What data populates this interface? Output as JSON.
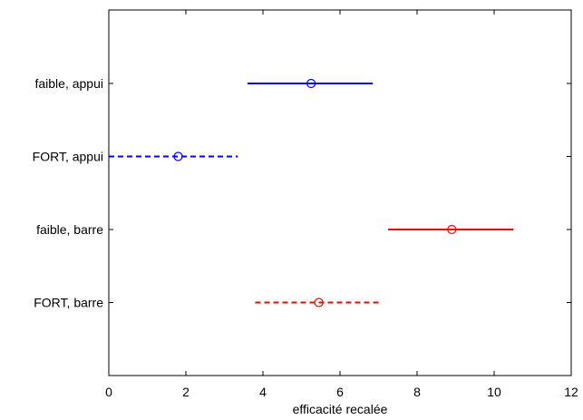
{
  "chart_data": {
    "type": "scatter",
    "subtype": "error-bar interval plot",
    "xlabel": "efficacité recalée",
    "ylabel": "",
    "xlim": [
      0,
      12
    ],
    "xticks": [
      "0",
      "2",
      "4",
      "6",
      "8",
      "10",
      "12"
    ],
    "grid": false,
    "legend": "none",
    "categories": [
      "faible, appui",
      "FORT, appui",
      "faible, barre",
      "FORT, barre"
    ],
    "series": [
      {
        "label": "faible, appui",
        "center": 5.25,
        "low": 3.6,
        "high": 6.85,
        "color": "#0000ff",
        "line": "solid"
      },
      {
        "label": "FORT, appui",
        "center": 1.8,
        "low": 0.0,
        "high": 3.35,
        "color": "#0000ff",
        "line": "dashed"
      },
      {
        "label": "faible, barre",
        "center": 8.9,
        "low": 7.25,
        "high": 10.5,
        "color": "#ff0000",
        "line": "solid"
      },
      {
        "label": "FORT, barre",
        "center": 5.45,
        "low": 3.8,
        "high": 7.0,
        "color": "#ff0000",
        "line": "dashed"
      }
    ]
  }
}
